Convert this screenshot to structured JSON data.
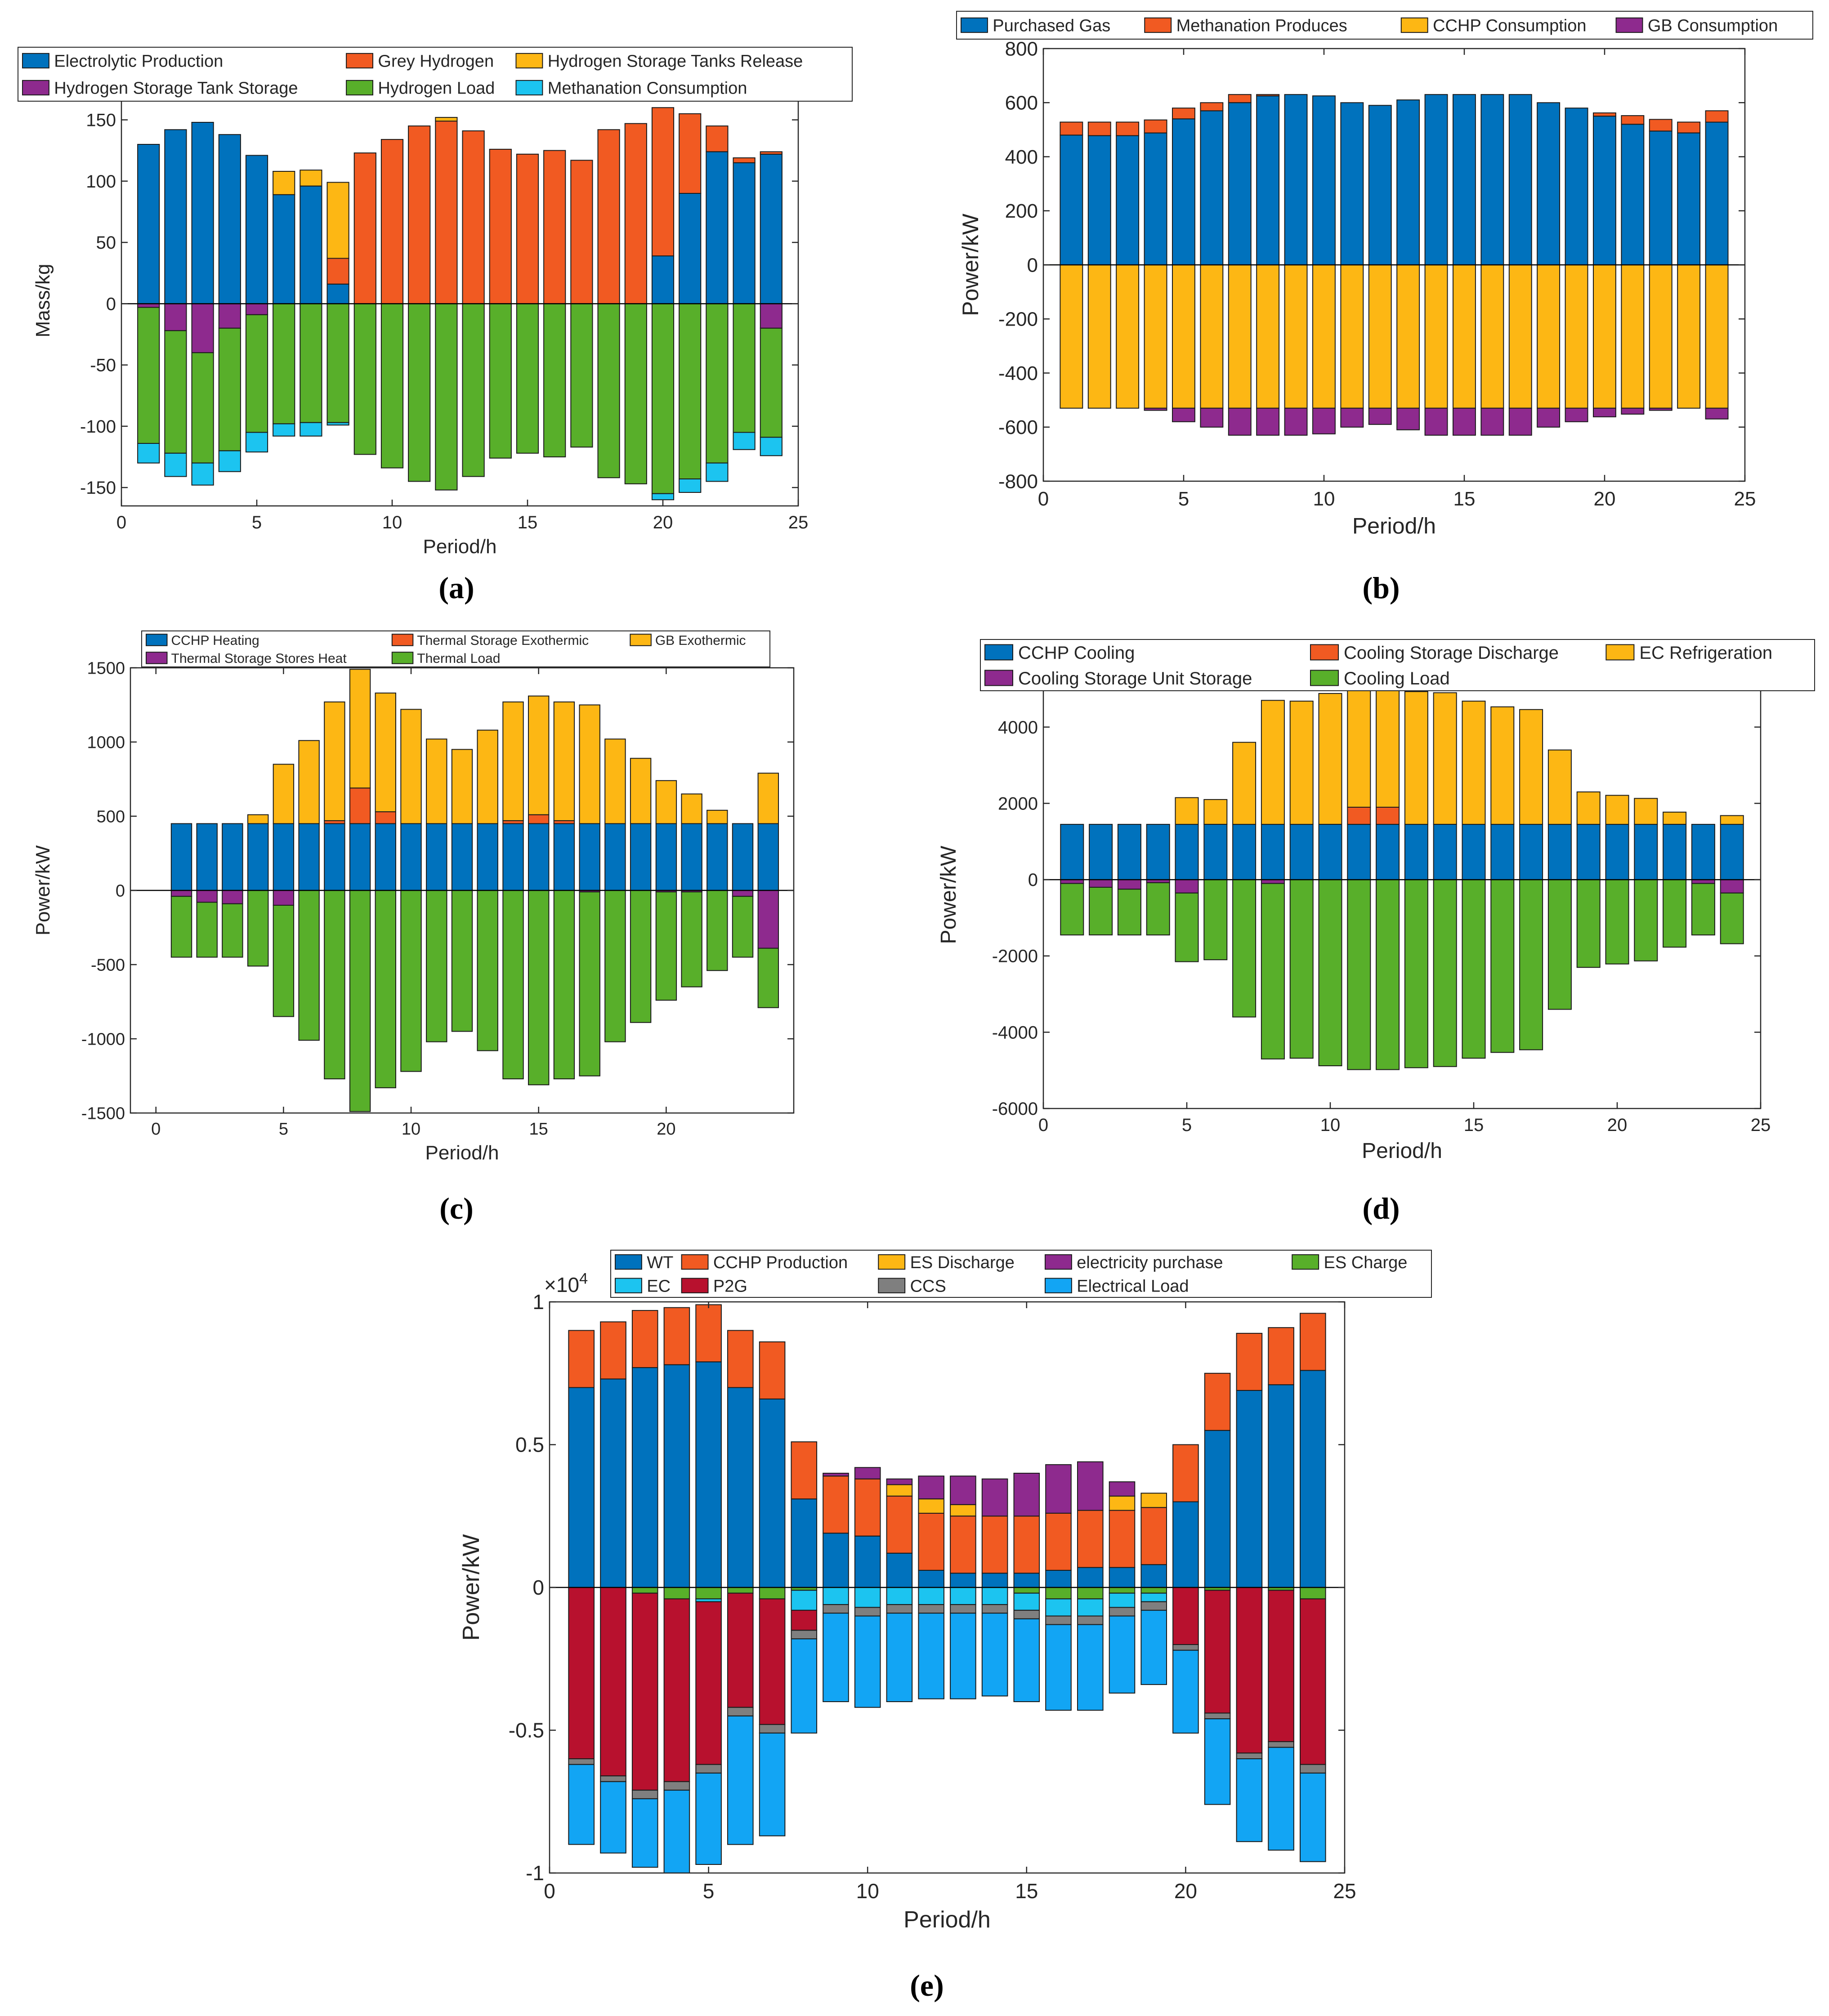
{
  "colors": {
    "blue": "#0072BD",
    "orange": "#F15A22",
    "yellow": "#FDB714",
    "green": "#58AF2A",
    "purple": "#8E2A8E",
    "cyan": "#1CC4F0",
    "red": "#B8112E",
    "lightblue": "#12A5F4",
    "gray": "#7F7F7F"
  },
  "chart_data": [
    {
      "id": "a",
      "caption": "(a)",
      "type": "bar",
      "stacked": true,
      "xlabel": "Period/h",
      "ylabel": "Mass/kg",
      "xlim": [
        0,
        25
      ],
      "ylim": [
        -165,
        170
      ],
      "xticks": [
        0,
        5,
        10,
        15,
        20,
        25
      ],
      "yticks": [
        -150,
        -100,
        -50,
        0,
        50,
        100,
        150
      ],
      "x": [
        1,
        2,
        3,
        4,
        5,
        6,
        7,
        8,
        9,
        10,
        11,
        12,
        13,
        14,
        15,
        16,
        17,
        18,
        19,
        20,
        21,
        22,
        23,
        24
      ],
      "legend_cols": 3,
      "series": [
        {
          "name": "Electrolytic Production",
          "color": "blue",
          "values": [
            130,
            142,
            148,
            138,
            121,
            89,
            96,
            16,
            0,
            0,
            0,
            0,
            0,
            0,
            0,
            0,
            0,
            0,
            0,
            39,
            90,
            124,
            115,
            122
          ]
        },
        {
          "name": "Grey Hydrogen",
          "color": "orange",
          "values": [
            0,
            0,
            0,
            0,
            0,
            0,
            0,
            21,
            123,
            134,
            145,
            149,
            141,
            126,
            122,
            125,
            117,
            142,
            147,
            121,
            65,
            21,
            4,
            2
          ]
        },
        {
          "name": "Hydrogen Storage Tanks Release",
          "color": "yellow",
          "values": [
            0,
            0,
            0,
            0,
            0,
            19,
            13,
            62,
            0,
            0,
            0,
            3,
            0,
            0,
            0,
            0,
            0,
            0,
            0,
            0,
            0,
            0,
            0,
            0
          ]
        },
        {
          "name": "Hydrogen Storage Tank Storage",
          "color": "purple",
          "values": [
            -3,
            -22,
            -40,
            -20,
            -9,
            0,
            0,
            0,
            0,
            0,
            0,
            0,
            0,
            0,
            0,
            0,
            0,
            0,
            0,
            0,
            0,
            0,
            0,
            -20
          ]
        },
        {
          "name": "Hydrogen Load",
          "color": "green",
          "values": [
            -111,
            -100,
            -90,
            -100,
            -96,
            -98,
            -97,
            -97,
            -123,
            -134,
            -145,
            -152,
            -141,
            -126,
            -122,
            -125,
            -117,
            -142,
            -147,
            -155,
            -143,
            -130,
            -105,
            -89
          ]
        },
        {
          "name": "Methanation Consumption",
          "color": "cyan",
          "values": [
            -16,
            -19,
            -18,
            -17,
            -16,
            -10,
            -11,
            -2,
            0,
            0,
            0,
            0,
            0,
            0,
            0,
            0,
            0,
            0,
            0,
            -5,
            -11,
            -15,
            -14,
            -15
          ]
        }
      ]
    },
    {
      "id": "b",
      "caption": "(b)",
      "type": "bar",
      "stacked": true,
      "xlabel": "Period/h",
      "ylabel": "Power/kW",
      "xlim": [
        0,
        25
      ],
      "ylim": [
        -800,
        800
      ],
      "xticks": [
        0,
        5,
        10,
        15,
        20,
        25
      ],
      "yticks": [
        -800,
        -600,
        -400,
        -200,
        0,
        200,
        400,
        600,
        800
      ],
      "x": [
        1,
        2,
        3,
        4,
        5,
        6,
        7,
        8,
        9,
        10,
        11,
        12,
        13,
        14,
        15,
        16,
        17,
        18,
        19,
        20,
        21,
        22,
        23,
        24
      ],
      "legend_cols": 4,
      "series": [
        {
          "name": "Purchased Gas",
          "color": "blue",
          "values": [
            480,
            478,
            478,
            488,
            540,
            570,
            600,
            625,
            630,
            625,
            600,
            590,
            610,
            630,
            630,
            630,
            630,
            600,
            580,
            550,
            520,
            495,
            488,
            528
          ]
        },
        {
          "name": "Methanation Produces",
          "color": "orange",
          "values": [
            48,
            50,
            50,
            48,
            40,
            30,
            30,
            5,
            0,
            0,
            0,
            0,
            0,
            0,
            0,
            0,
            0,
            0,
            0,
            12,
            32,
            43,
            40,
            42
          ]
        },
        {
          "name": "CCHP Consumption",
          "color": "yellow",
          "values": [
            -530,
            -530,
            -530,
            -530,
            -530,
            -530,
            -530,
            -530,
            -530,
            -530,
            -530,
            -530,
            -530,
            -530,
            -530,
            -530,
            -530,
            -530,
            -530,
            -530,
            -530,
            -530,
            -530,
            -530
          ]
        },
        {
          "name": "GB Consumption",
          "color": "purple",
          "values": [
            0,
            0,
            0,
            -8,
            -50,
            -70,
            -100,
            -100,
            -100,
            -95,
            -70,
            -60,
            -80,
            -100,
            -100,
            -100,
            -100,
            -70,
            -50,
            -32,
            -22,
            -8,
            0,
            -40
          ]
        }
      ]
    },
    {
      "id": "c",
      "caption": "(c)",
      "type": "bar",
      "stacked": true,
      "xlabel": "Period/h",
      "ylabel": "Power/kW",
      "xlim": [
        -1,
        25
      ],
      "ylim": [
        -1500,
        1500
      ],
      "xticks": [
        0,
        5,
        10,
        15,
        20
      ],
      "yticks": [
        -1500,
        -1000,
        -500,
        0,
        500,
        1000,
        1500
      ],
      "x": [
        1,
        2,
        3,
        4,
        5,
        6,
        7,
        8,
        9,
        10,
        11,
        12,
        13,
        14,
        15,
        16,
        17,
        18,
        19,
        20,
        21,
        22,
        23,
        24
      ],
      "legend_cols": 3,
      "series": [
        {
          "name": "CCHP Heating",
          "color": "blue",
          "values": [
            450,
            450,
            450,
            450,
            450,
            450,
            450,
            450,
            450,
            450,
            450,
            450,
            450,
            450,
            450,
            450,
            450,
            450,
            450,
            450,
            450,
            450,
            450,
            450
          ]
        },
        {
          "name": "Thermal Storage Exothermic",
          "color": "orange",
          "values": [
            0,
            0,
            0,
            0,
            0,
            0,
            20,
            240,
            80,
            0,
            0,
            0,
            0,
            20,
            60,
            20,
            0,
            0,
            0,
            0,
            0,
            0,
            0,
            0
          ]
        },
        {
          "name": "GB Exothermic",
          "color": "yellow",
          "values": [
            0,
            0,
            0,
            60,
            400,
            560,
            800,
            800,
            800,
            770,
            570,
            500,
            630,
            800,
            800,
            800,
            800,
            570,
            440,
            290,
            200,
            90,
            0,
            340
          ]
        },
        {
          "name": "Thermal Storage Stores Heat",
          "color": "purple",
          "values": [
            -40,
            -80,
            -90,
            0,
            -100,
            0,
            0,
            0,
            0,
            0,
            0,
            0,
            0,
            0,
            0,
            0,
            -10,
            0,
            0,
            -10,
            -10,
            0,
            -40,
            -390
          ]
        },
        {
          "name": "Thermal Load",
          "color": "green",
          "values": [
            -410,
            -370,
            -360,
            -510,
            -750,
            -1010,
            -1270,
            -1490,
            -1330,
            -1220,
            -1020,
            -950,
            -1080,
            -1270,
            -1310,
            -1270,
            -1240,
            -1020,
            -890,
            -730,
            -640,
            -540,
            -410,
            -400
          ]
        }
      ]
    },
    {
      "id": "d",
      "caption": "(d)",
      "type": "bar",
      "stacked": true,
      "xlabel": "Period/h",
      "ylabel": "Power/kW",
      "xlim": [
        0,
        25
      ],
      "ylim": [
        -6000,
        5200
      ],
      "xticks": [
        0,
        5,
        10,
        15,
        20,
        25
      ],
      "yticks": [
        -6000,
        -4000,
        -2000,
        0,
        2000,
        4000
      ],
      "x": [
        1,
        2,
        3,
        4,
        5,
        6,
        7,
        8,
        9,
        10,
        11,
        12,
        13,
        14,
        15,
        16,
        17,
        18,
        19,
        20,
        21,
        22,
        23,
        24
      ],
      "legend_cols": 3,
      "series": [
        {
          "name": "CCHP Cooling",
          "color": "blue",
          "values": [
            1450,
            1450,
            1450,
            1450,
            1450,
            1450,
            1450,
            1450,
            1450,
            1450,
            1450,
            1450,
            1450,
            1450,
            1450,
            1450,
            1450,
            1450,
            1450,
            1450,
            1450,
            1450,
            1450,
            1450
          ]
        },
        {
          "name": "Cooling Storage Discharge",
          "color": "orange",
          "values": [
            0,
            0,
            0,
            0,
            0,
            0,
            0,
            0,
            0,
            0,
            450,
            450,
            0,
            0,
            0,
            0,
            0,
            0,
            0,
            0,
            0,
            0,
            0,
            0
          ]
        },
        {
          "name": "EC Refrigeration",
          "color": "yellow",
          "values": [
            0,
            0,
            0,
            0,
            700,
            650,
            2150,
            3250,
            3230,
            3430,
            3080,
            3080,
            3480,
            3450,
            3230,
            3080,
            3010,
            1950,
            850,
            760,
            680,
            320,
            0,
            230
          ]
        },
        {
          "name": "Cooling Storage Unit Storage",
          "color": "purple",
          "values": [
            -100,
            -200,
            -250,
            -80,
            -350,
            0,
            0,
            -100,
            0,
            0,
            0,
            0,
            0,
            0,
            0,
            0,
            0,
            0,
            0,
            0,
            0,
            0,
            -100,
            -350
          ]
        },
        {
          "name": "Cooling Load",
          "color": "green",
          "values": [
            -1350,
            -1250,
            -1200,
            -1370,
            -1800,
            -2100,
            -3600,
            -4600,
            -4680,
            -4880,
            -4980,
            -4980,
            -4930,
            -4900,
            -4680,
            -4530,
            -4460,
            -3400,
            -2300,
            -2210,
            -2130,
            -1770,
            -1350,
            -1330
          ]
        }
      ]
    },
    {
      "id": "e",
      "caption": "(e)",
      "type": "bar",
      "stacked": true,
      "xlabel": "Period/h",
      "ylabel": "Power/kW",
      "multiplier": "×10",
      "multiplier_exp": "4",
      "xlim": [
        0,
        25
      ],
      "ylim": [
        -1,
        1
      ],
      "xticks": [
        0,
        5,
        10,
        15,
        20,
        25
      ],
      "yticks": [
        -1,
        -0.5,
        0,
        0.5,
        1
      ],
      "ytick_labels": [
        "-1",
        "-0.5",
        "0",
        "0.5",
        "1"
      ],
      "x": [
        1,
        2,
        3,
        4,
        5,
        6,
        7,
        8,
        9,
        10,
        11,
        12,
        13,
        14,
        15,
        16,
        17,
        18,
        19,
        20,
        21,
        22,
        23,
        24
      ],
      "legend_cols": 5,
      "legend_order": [
        "WT",
        "CCHP Production",
        "ES Discharge",
        "electricity purchase",
        "ES Charge",
        "EC",
        "P2G",
        "CCS",
        "Electrical  Load"
      ],
      "series": [
        {
          "name": "WT",
          "color": "blue",
          "values": [
            0.7,
            0.73,
            0.77,
            0.78,
            0.79,
            0.7,
            0.66,
            0.31,
            0.19,
            0.18,
            0.12,
            0.06,
            0.05,
            0.05,
            0.05,
            0.06,
            0.07,
            0.07,
            0.08,
            0.3,
            0.55,
            0.69,
            0.71,
            0.76
          ]
        },
        {
          "name": "CCHP Production",
          "color": "orange",
          "values": [
            0.2,
            0.2,
            0.2,
            0.2,
            0.2,
            0.2,
            0.2,
            0.2,
            0.2,
            0.2,
            0.2,
            0.2,
            0.2,
            0.2,
            0.2,
            0.2,
            0.2,
            0.2,
            0.2,
            0.2,
            0.2,
            0.2,
            0.2,
            0.2
          ]
        },
        {
          "name": "ES Discharge",
          "color": "yellow",
          "values": [
            0,
            0,
            0,
            0,
            0,
            0,
            0,
            0,
            0,
            0,
            0.04,
            0.05,
            0.04,
            0,
            0,
            0,
            0,
            0.05,
            0.05,
            0,
            0,
            0,
            0,
            0
          ]
        },
        {
          "name": "electricity purchase",
          "color": "purple",
          "values": [
            0,
            0,
            0,
            0,
            0,
            0,
            0,
            0,
            0.01,
            0.04,
            0.02,
            0.08,
            0.1,
            0.13,
            0.15,
            0.17,
            0.17,
            0.05,
            0,
            0,
            0,
            0,
            0,
            0
          ]
        },
        {
          "name": "ES Charge",
          "color": "green",
          "values": [
            0,
            0,
            -0.02,
            -0.04,
            -0.04,
            -0.02,
            -0.04,
            -0.01,
            0,
            0,
            0,
            0,
            0,
            0,
            -0.02,
            -0.04,
            -0.04,
            -0.02,
            -0.02,
            0,
            -0.01,
            0,
            -0.01,
            -0.04
          ]
        },
        {
          "name": "EC",
          "color": "cyan",
          "values": [
            0,
            0,
            0,
            0,
            -0.01,
            0,
            0,
            -0.07,
            -0.06,
            -0.07,
            -0.06,
            -0.06,
            -0.06,
            -0.06,
            -0.06,
            -0.06,
            -0.06,
            -0.05,
            -0.03,
            0,
            0,
            0,
            0,
            0
          ]
        },
        {
          "name": "P2G",
          "color": "red",
          "values": [
            -0.6,
            -0.66,
            -0.69,
            -0.64,
            -0.57,
            -0.4,
            -0.44,
            -0.07,
            0,
            0,
            0,
            0,
            0,
            0,
            0,
            0,
            0,
            0,
            0,
            -0.2,
            -0.43,
            -0.58,
            -0.53,
            -0.58
          ]
        },
        {
          "name": "CCS",
          "color": "gray",
          "values": [
            -0.02,
            -0.02,
            -0.03,
            -0.03,
            -0.03,
            -0.03,
            -0.03,
            -0.03,
            -0.03,
            -0.03,
            -0.03,
            -0.03,
            -0.03,
            -0.03,
            -0.03,
            -0.03,
            -0.03,
            -0.03,
            -0.03,
            -0.02,
            -0.02,
            -0.02,
            -0.02,
            -0.03
          ]
        },
        {
          "name": "Electrical  Load",
          "color": "lightblue",
          "values": [
            -0.28,
            -0.25,
            -0.24,
            -0.29,
            -0.32,
            -0.45,
            -0.36,
            -0.33,
            -0.31,
            -0.32,
            -0.31,
            -0.3,
            -0.3,
            -0.29,
            -0.29,
            -0.3,
            -0.3,
            -0.27,
            -0.26,
            -0.29,
            -0.3,
            -0.29,
            -0.36,
            -0.31
          ]
        }
      ]
    }
  ]
}
